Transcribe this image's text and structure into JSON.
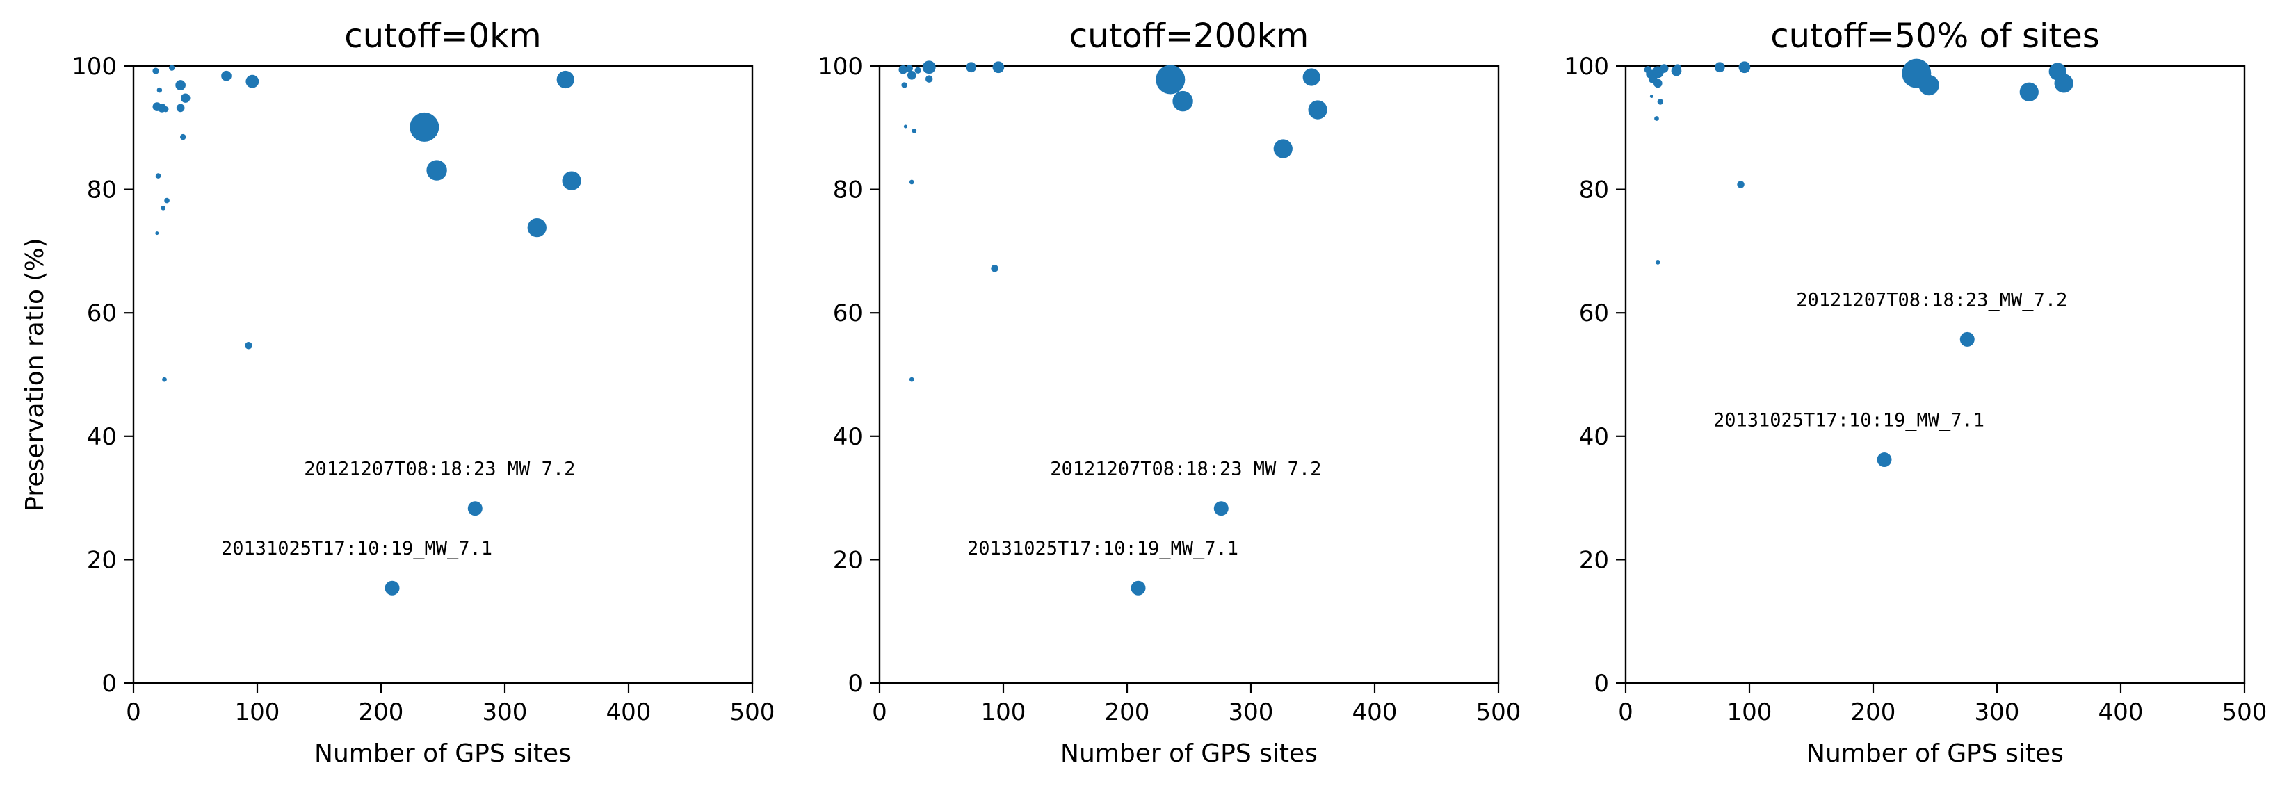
{
  "chart_data": [
    {
      "type": "scatter",
      "title": "cutoff=0km",
      "xlabel": "Number of GPS sites",
      "ylabel": "Preservation ratio (%)",
      "xlim": [
        0,
        500
      ],
      "ylim": [
        0,
        100
      ],
      "xticks": [
        "0",
        "100",
        "200",
        "300",
        "400",
        "500"
      ],
      "yticks": [
        "0",
        "20",
        "40",
        "60",
        "80",
        "100"
      ],
      "color": "#1f77b4",
      "grid": false,
      "points": [
        {
          "x": 18,
          "y": 99.2,
          "s": 2.2
        },
        {
          "x": 31,
          "y": 99.7,
          "s": 2
        },
        {
          "x": 21,
          "y": 96.1,
          "s": 1.8
        },
        {
          "x": 19,
          "y": 93.4,
          "s": 3
        },
        {
          "x": 23,
          "y": 93.2,
          "s": 3
        },
        {
          "x": 26,
          "y": 93.0,
          "s": 2
        },
        {
          "x": 38,
          "y": 96.9,
          "s": 3.5
        },
        {
          "x": 38,
          "y": 93.2,
          "s": 2.8
        },
        {
          "x": 42,
          "y": 94.8,
          "s": 3.2
        },
        {
          "x": 40,
          "y": 88.5,
          "s": 2
        },
        {
          "x": 75,
          "y": 98.4,
          "s": 3.5
        },
        {
          "x": 96,
          "y": 97.5,
          "s": 4.5
        },
        {
          "x": 20,
          "y": 82.2,
          "s": 1.8
        },
        {
          "x": 27,
          "y": 78.2,
          "s": 1.8
        },
        {
          "x": 24,
          "y": 77.0,
          "s": 1.6
        },
        {
          "x": 19,
          "y": 72.9,
          "s": 1.2
        },
        {
          "x": 93,
          "y": 54.7,
          "s": 2.5
        },
        {
          "x": 25,
          "y": 49.2,
          "s": 1.6
        },
        {
          "x": 235,
          "y": 90.1,
          "s": 10
        },
        {
          "x": 245,
          "y": 83.1,
          "s": 7
        },
        {
          "x": 349,
          "y": 97.8,
          "s": 6
        },
        {
          "x": 354,
          "y": 81.4,
          "s": 6.5
        },
        {
          "x": 326,
          "y": 73.8,
          "s": 6.5
        },
        {
          "x": 276,
          "y": 28.3,
          "s": 5
        },
        {
          "x": 209,
          "y": 15.4,
          "s": 5
        }
      ],
      "annotations": [
        {
          "text": "20121207T08:18:23_MW_7.2",
          "x": 276,
          "y": 28.3
        },
        {
          "text": "20131025T17:10:19_MW_7.1",
          "x": 209,
          "y": 15.4
        }
      ]
    },
    {
      "type": "scatter",
      "title": "cutoff=200km",
      "xlabel": "Number of GPS sites",
      "ylabel": "",
      "xlim": [
        0,
        500
      ],
      "ylim": [
        0,
        100
      ],
      "xticks": [
        "0",
        "100",
        "200",
        "300",
        "400",
        "500"
      ],
      "yticks": [
        "0",
        "20",
        "40",
        "60",
        "80",
        "100"
      ],
      "color": "#1f77b4",
      "grid": false,
      "points": [
        {
          "x": 19,
          "y": 99.4,
          "s": 3
        },
        {
          "x": 24,
          "y": 99.6,
          "s": 2.5
        },
        {
          "x": 31,
          "y": 99.3,
          "s": 2.2
        },
        {
          "x": 40,
          "y": 99.8,
          "s": 4.5
        },
        {
          "x": 26,
          "y": 98.5,
          "s": 3
        },
        {
          "x": 40,
          "y": 97.9,
          "s": 2.5
        },
        {
          "x": 20,
          "y": 96.9,
          "s": 2
        },
        {
          "x": 74,
          "y": 99.8,
          "s": 3.5
        },
        {
          "x": 96,
          "y": 99.8,
          "s": 4
        },
        {
          "x": 21,
          "y": 90.2,
          "s": 1.2
        },
        {
          "x": 28,
          "y": 89.5,
          "s": 1.6
        },
        {
          "x": 26,
          "y": 81.2,
          "s": 1.6
        },
        {
          "x": 93,
          "y": 67.2,
          "s": 2.5
        },
        {
          "x": 26,
          "y": 49.2,
          "s": 1.6
        },
        {
          "x": 235,
          "y": 97.8,
          "s": 10
        },
        {
          "x": 245,
          "y": 94.3,
          "s": 7
        },
        {
          "x": 349,
          "y": 98.2,
          "s": 6
        },
        {
          "x": 354,
          "y": 92.9,
          "s": 6.5
        },
        {
          "x": 326,
          "y": 86.6,
          "s": 6.5
        },
        {
          "x": 276,
          "y": 28.3,
          "s": 5
        },
        {
          "x": 209,
          "y": 15.4,
          "s": 5
        }
      ],
      "annotations": [
        {
          "text": "20121207T08:18:23_MW_7.2",
          "x": 276,
          "y": 28.3
        },
        {
          "text": "20131025T17:10:19_MW_7.1",
          "x": 209,
          "y": 15.4
        }
      ]
    },
    {
      "type": "scatter",
      "title": "cutoff=50% of sites",
      "xlabel": "Number of GPS sites",
      "ylabel": "",
      "xlim": [
        0,
        500
      ],
      "ylim": [
        0,
        100
      ],
      "xticks": [
        "0",
        "100",
        "200",
        "300",
        "400",
        "500"
      ],
      "yticks": [
        "0",
        "20",
        "40",
        "60",
        "80",
        "100"
      ],
      "color": "#1f77b4",
      "grid": false,
      "points": [
        {
          "x": 18,
          "y": 99.4,
          "s": 2.5
        },
        {
          "x": 20,
          "y": 98.7,
          "s": 3
        },
        {
          "x": 26,
          "y": 99.0,
          "s": 4
        },
        {
          "x": 31,
          "y": 99.6,
          "s": 3
        },
        {
          "x": 22,
          "y": 97.9,
          "s": 3
        },
        {
          "x": 26,
          "y": 97.2,
          "s": 3
        },
        {
          "x": 41,
          "y": 99.2,
          "s": 3.5
        },
        {
          "x": 42,
          "y": 99.7,
          "s": 2.5
        },
        {
          "x": 76,
          "y": 99.8,
          "s": 3.5
        },
        {
          "x": 96,
          "y": 99.8,
          "s": 4
        },
        {
          "x": 21,
          "y": 95.1,
          "s": 1.2
        },
        {
          "x": 28,
          "y": 94.2,
          "s": 2
        },
        {
          "x": 25,
          "y": 91.5,
          "s": 1.6
        },
        {
          "x": 93,
          "y": 80.8,
          "s": 2.5
        },
        {
          "x": 26,
          "y": 68.2,
          "s": 1.6
        },
        {
          "x": 235,
          "y": 98.8,
          "s": 10
        },
        {
          "x": 245,
          "y": 96.9,
          "s": 7
        },
        {
          "x": 349,
          "y": 99.1,
          "s": 6
        },
        {
          "x": 354,
          "y": 97.2,
          "s": 6.5
        },
        {
          "x": 326,
          "y": 95.8,
          "s": 6.5
        },
        {
          "x": 276,
          "y": 55.7,
          "s": 5
        },
        {
          "x": 209,
          "y": 36.2,
          "s": 5
        }
      ],
      "annotations": [
        {
          "text": "20121207T08:18:23_MW_7.2",
          "x": 276,
          "y": 55.7
        },
        {
          "text": "20131025T17:10:19_MW_7.1",
          "x": 209,
          "y": 36.2
        }
      ]
    }
  ]
}
